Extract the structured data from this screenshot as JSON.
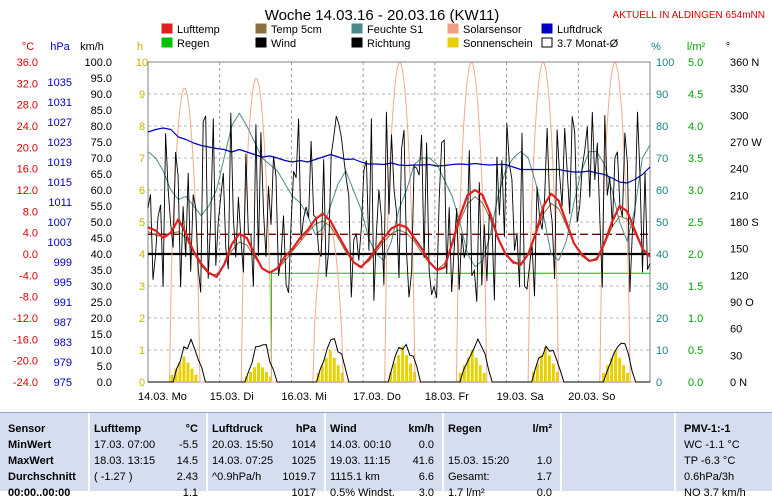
{
  "header": {
    "title": "Woche 14.03.16 - 20.03.16 (KW11)",
    "corner": "AKTUELL IN ALDINGEN 654mNN"
  },
  "units": {
    "temp": "°C",
    "press": "hPa",
    "wind": "km/h",
    "rain": "h",
    "hum": "%",
    "rain_l": "l/m²",
    "dir": "°"
  },
  "legend": [
    {
      "label": "Lufttemp",
      "color": "#e02020",
      "box": "#e02020"
    },
    {
      "label": "Temp 5cm",
      "color": "#8a7040",
      "box": "#8a7040"
    },
    {
      "label": "Feuchte S1",
      "color": "#4a8a8a",
      "box": "#4a8a8a"
    },
    {
      "label": "Solarsensor",
      "color": "#f0a080",
      "box": "#f0a080"
    },
    {
      "label": "Luftdruck",
      "color": "#0000c0",
      "box": "#0000c0"
    },
    {
      "label": "Regen",
      "color": "#00c000",
      "box": "#00c000"
    },
    {
      "label": "Wind",
      "color": "#000000",
      "box": "#000000"
    },
    {
      "label": "Richtung",
      "color": "#000000",
      "box": "#000000"
    },
    {
      "label": "Sonnenschein",
      "color": "#e8d000",
      "box": "#e8d000"
    },
    {
      "label": "3.7 Monat-Ø",
      "color": "#800000",
      "box": "#ffffff"
    }
  ],
  "chart_data": {
    "type": "line",
    "title": "Woche 14.03.16 - 20.03.16 (KW11)",
    "x_labels": [
      "14.03. Mo",
      "15.03. Di",
      "16.03. Mi",
      "17.03. Do",
      "18.03. Fr",
      "19.03. Sa",
      "20.03. So"
    ],
    "axes": {
      "temp_c": {
        "ticks": [
          "36.0",
          "32.0",
          "28.0",
          "24.0",
          "20.0",
          "16.0",
          "12.0",
          "8.0",
          "4.0",
          "0.0",
          "-4.0",
          "-8.0",
          "-12.0",
          "-16.0",
          "-20.0",
          "-24.0"
        ],
        "ylim": [
          -24,
          36
        ]
      },
      "pressure_hpa": {
        "ticks": [
          "",
          "1035",
          "1031",
          "1027",
          "1023",
          "1019",
          "1015",
          "1011",
          "1007",
          "1003",
          "999",
          "995",
          "991",
          "987",
          "983",
          "979",
          "975"
        ],
        "ylim": [
          975,
          1039
        ]
      },
      "wind_kmh": {
        "ticks": [
          "100.0",
          "95.0",
          "90.0",
          "85.0",
          "80.0",
          "75.0",
          "70.0",
          "65.0",
          "60.0",
          "55.0",
          "50.0",
          "45.0",
          "40.0",
          "35.0",
          "30.0",
          "25.0",
          "20.0",
          "15.0",
          "10.0",
          "5.0",
          "0.0"
        ],
        "ylim": [
          0,
          100
        ]
      },
      "sunshine_h": {
        "ticks": [
          "10",
          "9",
          "8",
          "7",
          "6",
          "5",
          "4",
          "3",
          "2",
          "1",
          "0"
        ],
        "ylim": [
          0,
          10
        ]
      },
      "humidity_pct": {
        "ticks": [
          "100",
          "90",
          "80",
          "70",
          "60",
          "50",
          "40",
          "30",
          "20",
          "10",
          "0"
        ],
        "ylim": [
          0,
          100
        ]
      },
      "rain_lm2": {
        "ticks": [
          "5.0",
          "4.5",
          "4.0",
          "3.5",
          "3.0",
          "2.5",
          "2.0",
          "1.5",
          "1.0",
          "0.5",
          "0.0"
        ],
        "ylim": [
          0,
          5
        ]
      },
      "direction": {
        "ticks": [
          "360 N",
          "330",
          "300",
          "270 W",
          "240",
          "210",
          "180 S",
          "150",
          "120",
          "90 O",
          "60",
          "30",
          "0 N"
        ],
        "ylim": [
          0,
          360
        ]
      }
    },
    "series": [
      {
        "name": "Lufttemp",
        "unit": "°C",
        "color": "#e02020",
        "values": [
          5.0,
          4.4,
          3.0,
          4.0,
          6.5,
          3.8,
          0.5,
          -1.8,
          -3.5,
          -4.3,
          -2.0,
          1.8,
          3.8,
          3.0,
          0.0,
          -2.7,
          -3.5,
          -2.7,
          -0.5,
          1.0,
          3.0,
          4.5,
          6.5,
          7.6,
          6.2,
          3.5,
          1.0,
          -1.5,
          -2.5,
          -1.0,
          1.0,
          3.0,
          4.8,
          5.5,
          5.0,
          3.0,
          1.0,
          -1.5,
          -3.0,
          -2.5,
          2.0,
          7.0,
          11.0,
          12.0,
          11.0,
          7.5,
          3.0,
          0.0,
          -1.5,
          -2.0,
          0.0,
          4.0,
          9.0,
          11.3,
          10.0,
          6.0,
          2.0,
          0.0,
          -1.3,
          -1.0,
          2.0,
          6.0,
          9.0,
          8.0,
          4.5,
          1.0,
          -0.5
        ]
      },
      {
        "name": "Luftdruck",
        "unit": "hPa",
        "color": "#0000c0",
        "values": [
          1025,
          1025.5,
          1025.8,
          1025.5,
          1024,
          1023.5,
          1022.8,
          1022.3,
          1022,
          1021.7,
          1021.5,
          1021,
          1021.5,
          1021,
          1020.5,
          1020,
          1020.2,
          1019.8,
          1019.3,
          1019,
          1019.3,
          1019,
          1019.5,
          1020,
          1020.5,
          1020,
          1019.5,
          1019.6,
          1019,
          1018.6,
          1018.6,
          1018.5,
          1018.8,
          1018.4,
          1018.3,
          1018.4,
          1018.4,
          1018.5,
          1018.2,
          1018.3,
          1018.5,
          1018.6,
          1018.5,
          1018.7,
          1018.5,
          1018.4,
          1018.5,
          1018.5,
          1018,
          1017.5,
          1017.5,
          1017.5,
          1017.5,
          1017.5,
          1017.5,
          1017.2,
          1017,
          1017,
          1017.2,
          1016.8,
          1016.5,
          1015.8,
          1015,
          1014.8,
          1015.5,
          1016.5,
          1018
        ]
      },
      {
        "name": "Feuchte S1",
        "unit": "%",
        "color": "#4a8a8a",
        "values": [
          72,
          70,
          66,
          60,
          57,
          58,
          55,
          52,
          55,
          60,
          70,
          80,
          84,
          80,
          75,
          70,
          68,
          66,
          62,
          58,
          56,
          52,
          46,
          48,
          55,
          62,
          66,
          60,
          54,
          45,
          40,
          38,
          44,
          54,
          60,
          68,
          70,
          70,
          68,
          63,
          58,
          50,
          40,
          36,
          38,
          46,
          58,
          66,
          70,
          72,
          70,
          62,
          52,
          40,
          38,
          44,
          56,
          66,
          72,
          72,
          68,
          60,
          50,
          44,
          54,
          70,
          74
        ]
      }
    ],
    "reference_lines": [
      {
        "name": "3.7 Monat-Ø",
        "unit": "°C",
        "value": 3.7
      },
      {
        "name": "Regen (Tagessumme)",
        "unit": "l/m²",
        "value": 1.7
      }
    ],
    "notes": "Wind, Richtung, Temp 5cm, Solarsensor und Sonnenschein als Kurven/Balken im Diagramm dargestellt"
  },
  "stats": {
    "sensor": {
      "header": "Sensor",
      "rows": [
        "MinWert",
        "MaxWert",
        "Durchschnitt",
        "00:00..00:00"
      ]
    },
    "lufttemp": {
      "header": "Lufttemp",
      "unit": "°C",
      "rows": [
        [
          "17.03.  07:00",
          "-5.5"
        ],
        [
          "18.03.  13:15",
          "14.5"
        ],
        [
          "( -1.27 )",
          "2.43"
        ],
        [
          "",
          "1.1"
        ]
      ]
    },
    "luftdruck": {
      "header": "Luftdruck",
      "unit": "hPa",
      "rows": [
        [
          "20.03.  15:50",
          "1014"
        ],
        [
          "14.03.  07:25",
          "1025"
        ],
        [
          "^0.9hPa/h",
          "1019.7"
        ],
        [
          "",
          "1017"
        ]
      ]
    },
    "wind": {
      "header": "Wind",
      "unit": "km/h",
      "rows": [
        [
          "14.03.  00:10",
          "0.0"
        ],
        [
          "19.03.  11:15",
          "41.6"
        ],
        [
          "1115.1 km",
          "6.6"
        ],
        [
          "0.5% Windst.",
          "3.0"
        ]
      ]
    },
    "regen": {
      "header": "Regen",
      "unit": "l/m²",
      "rows": [
        [
          "",
          ""
        ],
        [
          "15.03.  15:20",
          "1.0"
        ],
        [
          "Gesamt:",
          "1.7"
        ],
        [
          "1.7 l/m²",
          "0.0"
        ]
      ]
    },
    "pmv": {
      "header": "PMV-1:-1",
      "rows": [
        "WC -1.1 °C",
        "TP -6.3 °C",
        "0.6hPa/3h",
        "NO 3.7 km/h"
      ]
    }
  }
}
